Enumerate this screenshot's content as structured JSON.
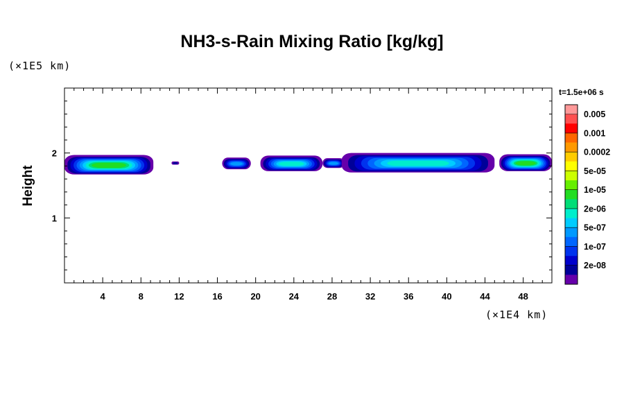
{
  "chart_data": {
    "type": "heatmap",
    "title": "NH3-s-Rain Mixing Ratio [kg/kg]",
    "ylabel": "Height",
    "yunit": "(×1E5 km)",
    "xunit": "(×1E4 km)",
    "time_label": "t=1.5e+06 s",
    "xlim": [
      0,
      51
    ],
    "ylim": [
      0,
      3
    ],
    "x_ticks": [
      "4",
      "8",
      "12",
      "16",
      "20",
      "24",
      "28",
      "32",
      "36",
      "40",
      "44",
      "48"
    ],
    "x_tick_values": [
      4,
      8,
      12,
      16,
      20,
      24,
      28,
      32,
      36,
      40,
      44,
      48
    ],
    "y_ticks": [
      "1",
      "2"
    ],
    "y_tick_values": [
      1,
      2
    ],
    "colorbar": {
      "labels": [
        "0.005",
        "0.001",
        "0.0002",
        "5e-05",
        "1e-05",
        "2e-06",
        "5e-07",
        "1e-07",
        "2e-08"
      ],
      "colors_top_to_bottom": [
        "#ff9999",
        "#ff5050",
        "#ff0000",
        "#ff6600",
        "#ff9900",
        "#ffcc00",
        "#ffff00",
        "#ccff00",
        "#66ee00",
        "#22dd22",
        "#00dd77",
        "#00eecc",
        "#00ccff",
        "#0099ff",
        "#0066ff",
        "#0033ee",
        "#0000cc",
        "#000099",
        "#6600aa"
      ]
    },
    "cells": [
      {
        "x0": 0.0,
        "x1": 9.3,
        "y0": 1.67,
        "y1": 1.97,
        "level": "1e-05"
      },
      {
        "x0": 11.2,
        "x1": 12.0,
        "y0": 1.82,
        "y1": 1.87,
        "level": "2e-08"
      },
      {
        "x0": 16.5,
        "x1": 19.5,
        "y0": 1.75,
        "y1": 1.93,
        "level": "5e-07"
      },
      {
        "x0": 20.5,
        "x1": 27.0,
        "y0": 1.72,
        "y1": 1.96,
        "level": "2e-06"
      },
      {
        "x0": 27.0,
        "x1": 29.3,
        "y0": 1.77,
        "y1": 1.92,
        "level": "5e-07"
      },
      {
        "x0": 29.0,
        "x1": 45.0,
        "y0": 1.7,
        "y1": 2.0,
        "level": "2e-06"
      },
      {
        "x0": 45.5,
        "x1": 51.0,
        "y0": 1.72,
        "y1": 1.98,
        "level": "1e-05"
      }
    ]
  }
}
